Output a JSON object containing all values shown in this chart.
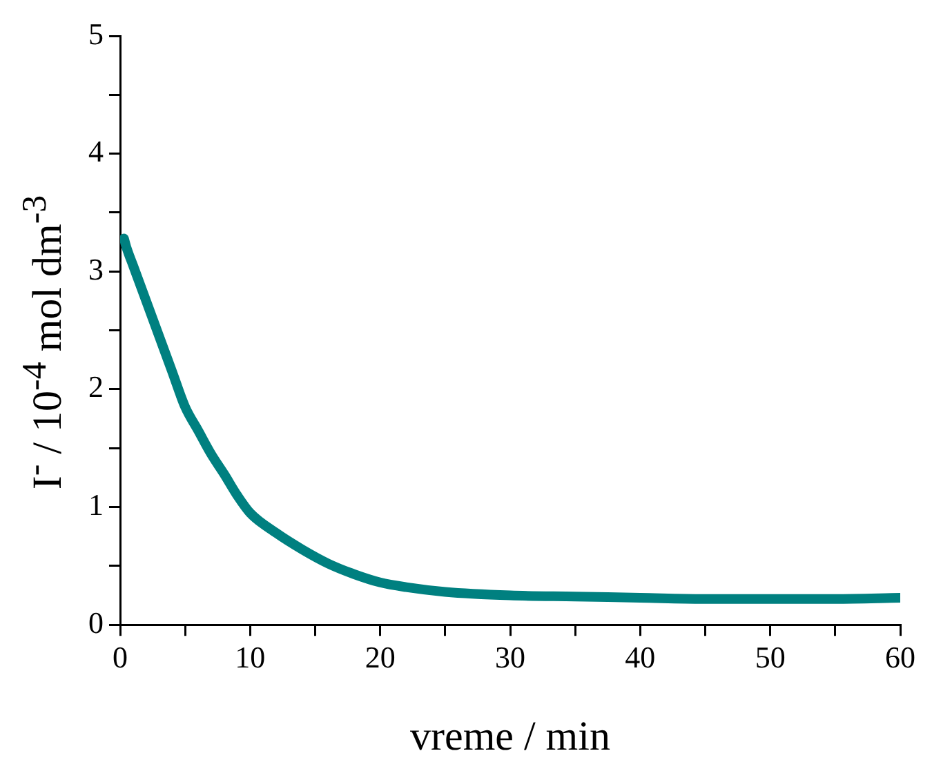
{
  "chart_data": {
    "type": "line",
    "xlabel": "vreme / min",
    "ylabel": "I$^{-}$ / 10$^{-4}$ mol dm$^{-3}$",
    "x": [
      0.3,
      0.5,
      1,
      2,
      3,
      4,
      5,
      6,
      7,
      8,
      9,
      10,
      12,
      14,
      16,
      18,
      20,
      22,
      25,
      30,
      35,
      40,
      45,
      50,
      55,
      60
    ],
    "series": [
      {
        "color": "#008080",
        "values": [
          3.28,
          3.2,
          3.05,
          2.75,
          2.45,
          2.15,
          1.85,
          1.65,
          1.45,
          1.28,
          1.1,
          0.95,
          0.78,
          0.64,
          0.52,
          0.43,
          0.36,
          0.32,
          0.28,
          0.25,
          0.24,
          0.23,
          0.22,
          0.22,
          0.22,
          0.23
        ]
      }
    ],
    "xlim": [
      0,
      60
    ],
    "xticks": [
      0,
      {
        "value": 5,
        "label": null
      },
      10,
      {
        "value": 15,
        "label": null
      },
      20,
      {
        "value": 25,
        "label": null
      },
      30,
      {
        "value": 35,
        "label": null
      },
      40,
      {
        "value": 45,
        "label": null
      },
      50,
      {
        "value": 55,
        "label": null
      },
      60
    ],
    "ylim": [
      0,
      5
    ],
    "yticks": [
      0,
      {
        "value": 0.5,
        "label": null
      },
      1,
      {
        "value": 1.5,
        "label": null
      },
      2,
      {
        "value": 2.5,
        "label": null
      },
      3,
      {
        "value": 3.5,
        "label": null
      },
      4,
      {
        "value": 4.5,
        "label": null
      },
      5
    ],
    "grid": false,
    "legend": false,
    "marker": "none",
    "line_style": "solid"
  }
}
